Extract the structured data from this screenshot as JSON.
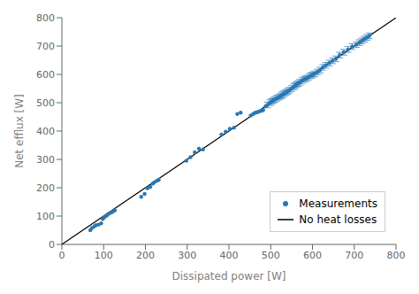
{
  "chart_data": {
    "type": "scatter",
    "xlabel": "Dissipated power [W]",
    "ylabel": "Net efflux [W]",
    "xlim": [
      0,
      800
    ],
    "ylim": [
      0,
      800
    ],
    "xticks": [
      0,
      100,
      200,
      300,
      400,
      500,
      600,
      700,
      800
    ],
    "yticks": [
      0,
      100,
      200,
      300,
      400,
      500,
      600,
      700,
      800
    ],
    "grid": false,
    "legend": "lower right",
    "series": [
      {
        "name": "Measurements",
        "type": "scatter",
        "marker": "circle",
        "color": "#2878b5",
        "x": [
          68,
          72,
          78,
          82,
          88,
          94,
          98,
          102,
          105,
          108,
          112,
          118,
          122,
          127,
          190,
          198,
          205,
          212,
          218,
          222,
          228,
          232,
          298,
          308,
          318,
          328,
          338,
          382,
          392,
          402,
          412,
          420,
          428,
          452,
          458,
          462,
          466,
          470,
          474,
          478,
          482,
          488,
          492,
          498,
          502,
          506,
          510,
          515,
          520,
          525,
          528,
          532,
          536,
          540,
          545,
          550,
          555,
          558,
          562,
          565,
          570,
          575,
          580,
          585,
          590,
          595,
          600,
          605,
          612,
          618,
          625,
          632,
          640,
          648,
          656,
          665,
          675,
          685,
          695,
          705,
          712,
          718,
          724,
          730,
          736
        ],
        "values": [
          50,
          58,
          64,
          68,
          70,
          74,
          90,
          97,
          100,
          103,
          108,
          112,
          116,
          120,
          168,
          178,
          198,
          203,
          215,
          220,
          225,
          228,
          295,
          308,
          325,
          338,
          335,
          388,
          398,
          408,
          412,
          460,
          465,
          455,
          460,
          464,
          466,
          468,
          470,
          472,
          474,
          488,
          492,
          500,
          504,
          508,
          512,
          516,
          520,
          524,
          528,
          532,
          536,
          540,
          544,
          550,
          556,
          560,
          564,
          568,
          572,
          578,
          583,
          585,
          590,
          595,
          598,
          602,
          608,
          615,
          625,
          632,
          640,
          648,
          655,
          668,
          678,
          688,
          698,
          705,
          712,
          718,
          724,
          730,
          736
        ],
        "yerr": [
          null,
          null,
          null,
          null,
          null,
          null,
          null,
          null,
          null,
          null,
          null,
          null,
          null,
          null,
          null,
          null,
          null,
          null,
          null,
          null,
          null,
          null,
          null,
          null,
          null,
          null,
          null,
          null,
          null,
          null,
          null,
          null,
          null,
          null,
          null,
          null,
          null,
          null,
          null,
          null,
          null,
          null,
          10,
          10,
          10,
          10,
          10,
          10,
          10,
          10,
          10,
          10,
          10,
          10,
          10,
          10,
          10,
          10,
          10,
          10,
          10,
          10,
          10,
          10,
          10,
          10,
          10,
          10,
          10,
          10,
          10,
          10,
          10,
          10,
          10,
          10,
          10,
          10,
          10,
          10,
          10,
          10,
          10,
          10,
          10
        ]
      },
      {
        "name": "No heat losses",
        "type": "line",
        "line_style": "solid",
        "color": "#000000",
        "x": [
          0,
          800
        ],
        "values": [
          0,
          800
        ]
      }
    ]
  }
}
